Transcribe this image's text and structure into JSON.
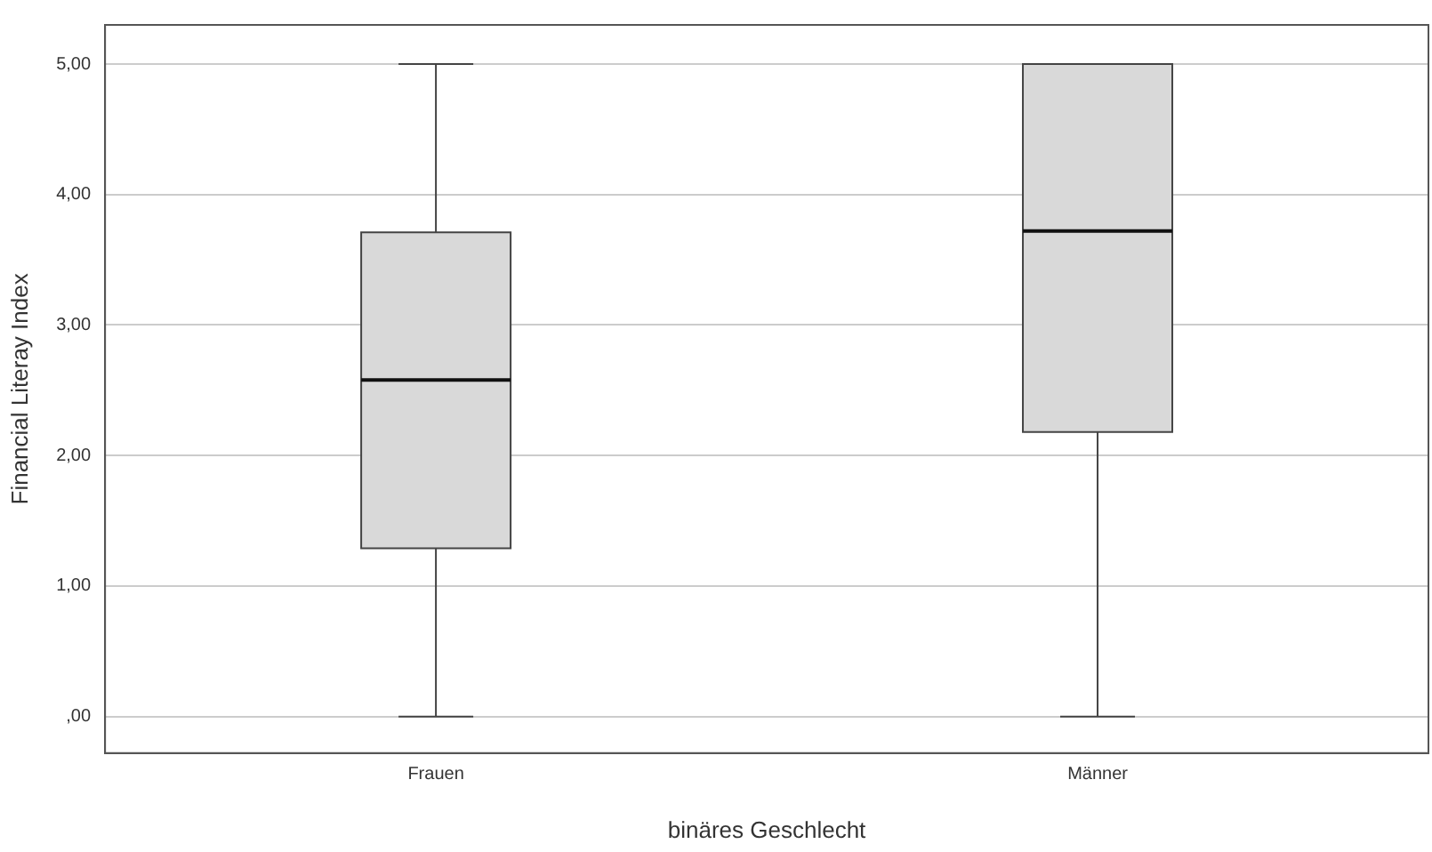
{
  "chart_data": {
    "type": "box",
    "xlabel": "binäres Geschlecht",
    "ylabel": "Financial Literay Index",
    "categories": [
      "Frauen",
      "Männer"
    ],
    "boxes": [
      {
        "low": 0,
        "q1": 1.29,
        "median": 2.58,
        "q3": 3.71,
        "high": 5
      },
      {
        "low": 0,
        "q1": 2.18,
        "median": 3.72,
        "q3": 5,
        "high": 5
      }
    ],
    "color": "#d9d9d9",
    "ylim": [
      -0.28,
      5.3
    ],
    "yticks": [
      {
        "value": 0,
        "label": ",00"
      },
      {
        "value": 1,
        "label": "1,00"
      },
      {
        "value": 2,
        "label": "2,00"
      },
      {
        "value": 3,
        "label": "3,00"
      },
      {
        "value": 4,
        "label": "4,00"
      },
      {
        "value": 5,
        "label": "5,00"
      }
    ],
    "grid": "y"
  }
}
